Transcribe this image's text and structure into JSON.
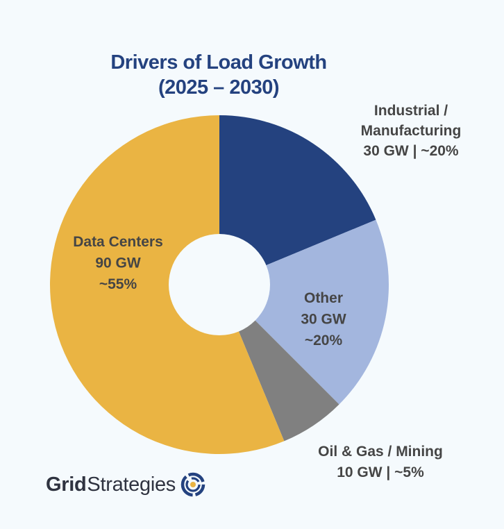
{
  "chart_data": {
    "type": "pie",
    "variant": "donut",
    "title": "Drivers of Load Growth",
    "title_lines": [
      "Drivers of Load Growth",
      "(2025 – 2030)"
    ],
    "unit": "GW",
    "start_angle": "top",
    "direction": "clockwise",
    "slices": [
      {
        "name": "Industrial / Manufacturing",
        "value": 30,
        "percent": 20,
        "color": "#24427f",
        "label_lines": [
          "Industrial /",
          "Manufacturing",
          "30 GW | ~20%"
        ],
        "label_position": "outside"
      },
      {
        "name": "Other",
        "value": 30,
        "percent": 20,
        "color": "#a3b6de",
        "label_lines": [
          "Other",
          "30 GW",
          "~20%"
        ],
        "label_position": "inside"
      },
      {
        "name": "Oil & Gas / Mining",
        "value": 10,
        "percent": 5,
        "color": "#808080",
        "label_lines": [
          "Oil & Gas / Mining",
          "10 GW | ~5%"
        ],
        "label_position": "outside"
      },
      {
        "name": "Data Centers",
        "value": 90,
        "percent": 55,
        "color": "#eab443",
        "label_lines": [
          "Data Centers",
          "90 GW",
          "~55%"
        ],
        "label_position": "inside"
      }
    ],
    "legend": "none"
  },
  "colors": {
    "background": "#f5fafd",
    "title": "#24427f",
    "label_text": "#454545",
    "logo_accent": "#eab443",
    "logo_ring": "#24427f"
  },
  "logo": {
    "word1": "Grid",
    "word2": "Strategies",
    "icon": "grid-strategies-logo-icon"
  }
}
